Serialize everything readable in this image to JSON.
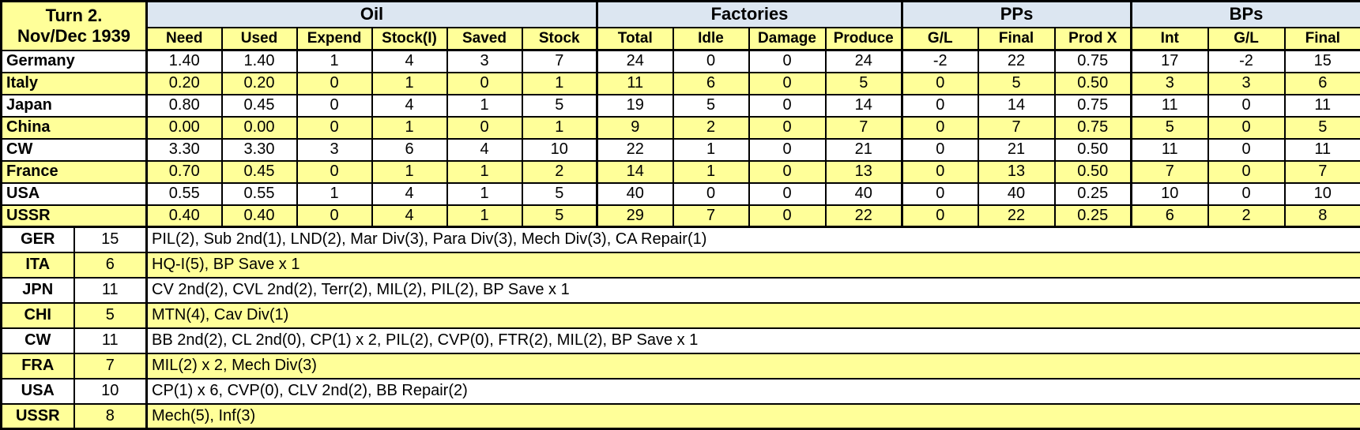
{
  "title": {
    "line1": "Turn 2.",
    "line2": "Nov/Dec 1939"
  },
  "colors": {
    "row_highlight": "#FFFF99",
    "row_plain": "#FFFFFF",
    "group_header": "#DCE6F1",
    "grid_line": "#000000"
  },
  "table": {
    "groups": [
      {
        "label": "Oil",
        "columns": [
          "Need",
          "Used",
          "Expend",
          "Stock(I)",
          "Saved",
          "Stock"
        ]
      },
      {
        "label": "Factories",
        "columns": [
          "Total",
          "Idle",
          "Damage",
          "Produce"
        ]
      },
      {
        "label": "PPs",
        "columns": [
          "G/L",
          "Final",
          "Prod X"
        ]
      },
      {
        "label": "BPs",
        "columns": [
          "Int",
          "G/L",
          "Final"
        ]
      }
    ],
    "rows": [
      {
        "name": "Germany",
        "values": [
          "1.40",
          "1.40",
          "1",
          "4",
          "3",
          "7",
          "24",
          "0",
          "0",
          "24",
          "-2",
          "22",
          "0.75",
          "17",
          "-2",
          "15"
        ]
      },
      {
        "name": "Italy",
        "values": [
          "0.20",
          "0.20",
          "0",
          "1",
          "0",
          "1",
          "11",
          "6",
          "0",
          "5",
          "0",
          "5",
          "0.50",
          "3",
          "3",
          "6"
        ]
      },
      {
        "name": "Japan",
        "values": [
          "0.80",
          "0.45",
          "0",
          "4",
          "1",
          "5",
          "19",
          "5",
          "0",
          "14",
          "0",
          "14",
          "0.75",
          "11",
          "0",
          "11"
        ]
      },
      {
        "name": "China",
        "values": [
          "0.00",
          "0.00",
          "0",
          "1",
          "0",
          "1",
          "9",
          "2",
          "0",
          "7",
          "0",
          "7",
          "0.75",
          "5",
          "0",
          "5"
        ]
      },
      {
        "name": "CW",
        "values": [
          "3.30",
          "3.30",
          "3",
          "6",
          "4",
          "10",
          "22",
          "1",
          "0",
          "21",
          "0",
          "21",
          "0.50",
          "11",
          "0",
          "11"
        ]
      },
      {
        "name": "France",
        "values": [
          "0.70",
          "0.45",
          "0",
          "1",
          "1",
          "2",
          "14",
          "1",
          "0",
          "13",
          "0",
          "13",
          "0.50",
          "7",
          "0",
          "7"
        ]
      },
      {
        "name": "USA",
        "values": [
          "0.55",
          "0.55",
          "1",
          "4",
          "1",
          "5",
          "40",
          "0",
          "0",
          "40",
          "0",
          "40",
          "0.25",
          "10",
          "0",
          "10"
        ]
      },
      {
        "name": "USSR",
        "values": [
          "0.40",
          "0.40",
          "0",
          "4",
          "1",
          "5",
          "29",
          "7",
          "0",
          "22",
          "0",
          "22",
          "0.25",
          "6",
          "2",
          "8"
        ]
      }
    ]
  },
  "production": [
    {
      "country": "GER",
      "bps": "15",
      "units": "PIL(2), Sub 2nd(1), LND(2), Mar Div(3), Para Div(3), Mech Div(3), CA Repair(1)"
    },
    {
      "country": "ITA",
      "bps": "6",
      "units": "HQ-I(5), BP Save x 1"
    },
    {
      "country": "JPN",
      "bps": "11",
      "units": "CV 2nd(2), CVL 2nd(2), Terr(2), MIL(2), PIL(2), BP Save x 1"
    },
    {
      "country": "CHI",
      "bps": "5",
      "units": "MTN(4), Cav Div(1)"
    },
    {
      "country": "CW",
      "bps": "11",
      "units": "BB 2nd(2), CL 2nd(0), CP(1) x 2, PIL(2), CVP(0), FTR(2), MIL(2), BP Save x 1"
    },
    {
      "country": "FRA",
      "bps": "7",
      "units": "MIL(2) x 2, Mech Div(3)"
    },
    {
      "country": "USA",
      "bps": "10",
      "units": "CP(1) x 6, CVP(0), CLV 2nd(2), BB Repair(2)"
    },
    {
      "country": "USSR",
      "bps": "8",
      "units": "Mech(5), Inf(3)"
    }
  ]
}
